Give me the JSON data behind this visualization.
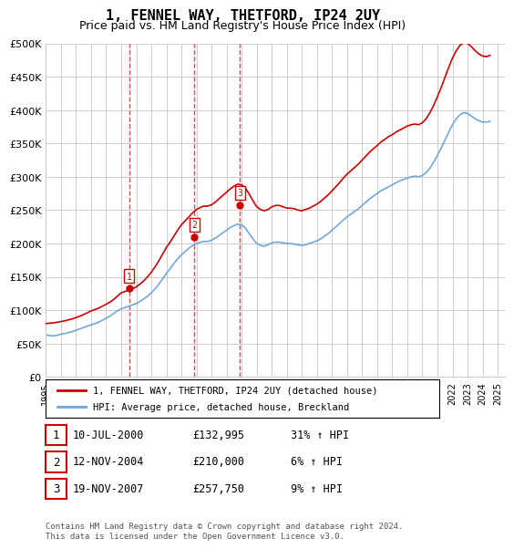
{
  "title": "1, FENNEL WAY, THETFORD, IP24 2UY",
  "subtitle": "Price paid vs. HM Land Registry's House Price Index (HPI)",
  "ylabel_ticks": [
    "£0",
    "£50K",
    "£100K",
    "£150K",
    "£200K",
    "£250K",
    "£300K",
    "£350K",
    "£400K",
    "£450K",
    "£500K"
  ],
  "ytick_values": [
    0,
    50000,
    100000,
    150000,
    200000,
    250000,
    300000,
    350000,
    400000,
    450000,
    500000
  ],
  "ylim": [
    0,
    500000
  ],
  "xlim_start": 1995.0,
  "xlim_end": 2025.5,
  "xtick_years": [
    1995,
    1996,
    1997,
    1998,
    1999,
    2000,
    2001,
    2002,
    2003,
    2004,
    2005,
    2006,
    2007,
    2008,
    2009,
    2010,
    2011,
    2012,
    2013,
    2014,
    2015,
    2016,
    2017,
    2018,
    2019,
    2020,
    2021,
    2022,
    2023,
    2024,
    2025
  ],
  "hpi_color": "#6fa8dc",
  "house_color": "#cc0000",
  "background_color": "#ffffff",
  "grid_color": "#cccccc",
  "sale_marker_color": "#cc0000",
  "sale_dashed_color": "#cc0000",
  "sales": [
    {
      "num": 1,
      "year": 2000.53,
      "price": 132995,
      "label": "10-JUL-2000",
      "amount": "£132,995",
      "hpi_text": "31% ↑ HPI"
    },
    {
      "num": 2,
      "year": 2004.87,
      "price": 210000,
      "label": "12-NOV-2004",
      "amount": "£210,000",
      "hpi_text": "6% ↑ HPI"
    },
    {
      "num": 3,
      "year": 2007.89,
      "price": 257750,
      "label": "19-NOV-2007",
      "amount": "£257,750",
      "hpi_text": "9% ↑ HPI"
    }
  ],
  "legend_house_label": "1, FENNEL WAY, THETFORD, IP24 2UY (detached house)",
  "legend_hpi_label": "HPI: Average price, detached house, Breckland",
  "footer": "Contains HM Land Registry data © Crown copyright and database right 2024.\nThis data is licensed under the Open Government Licence v3.0.",
  "hpi_data_x": [
    1995.0,
    1995.25,
    1995.5,
    1995.75,
    1996.0,
    1996.25,
    1996.5,
    1996.75,
    1997.0,
    1997.25,
    1997.5,
    1997.75,
    1998.0,
    1998.25,
    1998.5,
    1998.75,
    1999.0,
    1999.25,
    1999.5,
    1999.75,
    2000.0,
    2000.25,
    2000.5,
    2000.75,
    2001.0,
    2001.25,
    2001.5,
    2001.75,
    2002.0,
    2002.25,
    2002.5,
    2002.75,
    2003.0,
    2003.25,
    2003.5,
    2003.75,
    2004.0,
    2004.25,
    2004.5,
    2004.75,
    2005.0,
    2005.25,
    2005.5,
    2005.75,
    2006.0,
    2006.25,
    2006.5,
    2006.75,
    2007.0,
    2007.25,
    2007.5,
    2007.75,
    2008.0,
    2008.25,
    2008.5,
    2008.75,
    2009.0,
    2009.25,
    2009.5,
    2009.75,
    2010.0,
    2010.25,
    2010.5,
    2010.75,
    2011.0,
    2011.25,
    2011.5,
    2011.75,
    2012.0,
    2012.25,
    2012.5,
    2012.75,
    2013.0,
    2013.25,
    2013.5,
    2013.75,
    2014.0,
    2014.25,
    2014.5,
    2014.75,
    2015.0,
    2015.25,
    2015.5,
    2015.75,
    2016.0,
    2016.25,
    2016.5,
    2016.75,
    2017.0,
    2017.25,
    2017.5,
    2017.75,
    2018.0,
    2018.25,
    2018.5,
    2018.75,
    2019.0,
    2019.25,
    2019.5,
    2019.75,
    2020.0,
    2020.25,
    2020.5,
    2020.75,
    2021.0,
    2021.25,
    2021.5,
    2021.75,
    2022.0,
    2022.25,
    2022.5,
    2022.75,
    2023.0,
    2023.25,
    2023.5,
    2023.75,
    2024.0,
    2024.25,
    2024.5
  ],
  "hpi_data_y": [
    63000,
    62000,
    61500,
    62500,
    64000,
    65000,
    66500,
    68000,
    70000,
    72000,
    74000,
    76000,
    78000,
    80000,
    82000,
    85000,
    88000,
    91000,
    95000,
    99000,
    102000,
    104000,
    106000,
    108000,
    110000,
    113000,
    117000,
    121000,
    126000,
    132000,
    139000,
    147000,
    155000,
    162000,
    170000,
    177000,
    183000,
    188000,
    193000,
    197000,
    200000,
    202000,
    203000,
    203000,
    205000,
    208000,
    212000,
    216000,
    220000,
    224000,
    227000,
    229000,
    228000,
    223000,
    215000,
    207000,
    200000,
    197000,
    196000,
    198000,
    201000,
    202000,
    202000,
    201000,
    200000,
    200000,
    199000,
    198000,
    197000,
    198000,
    200000,
    202000,
    204000,
    207000,
    211000,
    215000,
    220000,
    225000,
    230000,
    235000,
    240000,
    244000,
    248000,
    252000,
    257000,
    262000,
    267000,
    271000,
    275000,
    279000,
    282000,
    285000,
    288000,
    291000,
    294000,
    296000,
    298000,
    300000,
    301000,
    300000,
    302000,
    306000,
    313000,
    322000,
    332000,
    343000,
    355000,
    367000,
    378000,
    387000,
    393000,
    396000,
    395000,
    391000,
    387000,
    384000,
    382000,
    382000,
    383000
  ],
  "house_data_x": [
    1995.0,
    1995.25,
    1995.5,
    1995.75,
    1996.0,
    1996.25,
    1996.5,
    1996.75,
    1997.0,
    1997.25,
    1997.5,
    1997.75,
    1998.0,
    1998.25,
    1998.5,
    1998.75,
    1999.0,
    1999.25,
    1999.5,
    1999.75,
    2000.0,
    2000.25,
    2000.5,
    2000.75,
    2001.0,
    2001.25,
    2001.5,
    2001.75,
    2002.0,
    2002.25,
    2002.5,
    2002.75,
    2003.0,
    2003.25,
    2003.5,
    2003.75,
    2004.0,
    2004.25,
    2004.5,
    2004.75,
    2005.0,
    2005.25,
    2005.5,
    2005.75,
    2006.0,
    2006.25,
    2006.5,
    2006.75,
    2007.0,
    2007.25,
    2007.5,
    2007.75,
    2008.0,
    2008.25,
    2008.5,
    2008.75,
    2009.0,
    2009.25,
    2009.5,
    2009.75,
    2010.0,
    2010.25,
    2010.5,
    2010.75,
    2011.0,
    2011.25,
    2011.5,
    2011.75,
    2012.0,
    2012.25,
    2012.5,
    2012.75,
    2013.0,
    2013.25,
    2013.5,
    2013.75,
    2014.0,
    2014.25,
    2014.5,
    2014.75,
    2015.0,
    2015.25,
    2015.5,
    2015.75,
    2016.0,
    2016.25,
    2016.5,
    2016.75,
    2017.0,
    2017.25,
    2017.5,
    2017.75,
    2018.0,
    2018.25,
    2018.5,
    2018.75,
    2019.0,
    2019.25,
    2019.5,
    2019.75,
    2020.0,
    2020.25,
    2020.5,
    2020.75,
    2021.0,
    2021.25,
    2021.5,
    2021.75,
    2022.0,
    2022.25,
    2022.5,
    2022.75,
    2023.0,
    2023.25,
    2023.5,
    2023.75,
    2024.0,
    2024.25,
    2024.5
  ],
  "house_data_y": [
    80000,
    80500,
    81000,
    82000,
    83000,
    84000,
    85500,
    87000,
    89000,
    91000,
    93500,
    96000,
    99000,
    101000,
    103000,
    106000,
    109000,
    112000,
    116000,
    121000,
    126000,
    128000,
    130000,
    132000,
    135000,
    139000,
    144000,
    150000,
    157000,
    165000,
    174000,
    184000,
    194000,
    202000,
    211000,
    220000,
    228000,
    234000,
    240000,
    246000,
    251000,
    254000,
    256000,
    256000,
    258000,
    262000,
    267000,
    272000,
    277000,
    282000,
    286000,
    289000,
    288000,
    283000,
    274000,
    264000,
    255000,
    251000,
    249000,
    251000,
    255000,
    257000,
    257000,
    255000,
    253000,
    253000,
    252000,
    250000,
    249000,
    251000,
    253000,
    256000,
    259000,
    263000,
    268000,
    273000,
    279000,
    285000,
    291000,
    298000,
    304000,
    309000,
    314000,
    319000,
    325000,
    331000,
    337000,
    342000,
    347000,
    352000,
    356000,
    360000,
    363000,
    367000,
    370000,
    373000,
    376000,
    378000,
    379000,
    378000,
    381000,
    387000,
    396000,
    407000,
    420000,
    434000,
    449000,
    464000,
    478000,
    489000,
    497000,
    501000,
    500000,
    495000,
    489000,
    484000,
    481000,
    480000,
    482000
  ]
}
